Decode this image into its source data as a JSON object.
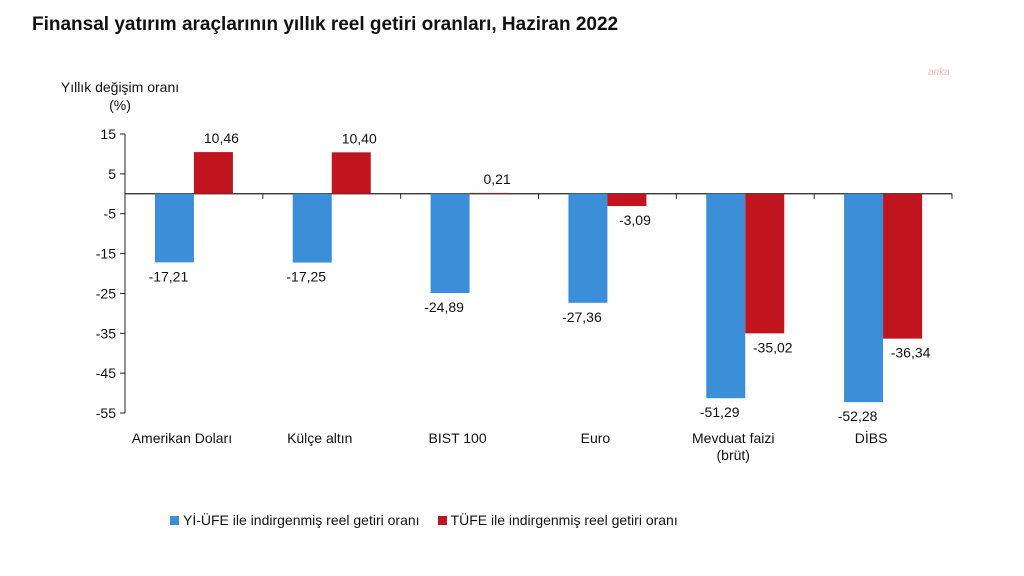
{
  "chart_data": {
    "type": "bar",
    "title": "Finansal yatırım araçlarının yıllık reel getiri oranları, Haziran 2022",
    "ylabel": "Yıllık değişim oranı (%)",
    "xlabel": "",
    "ylim": [
      -55,
      15
    ],
    "yticks": [
      15,
      5,
      -5,
      -15,
      -25,
      -35,
      -45,
      -55
    ],
    "categories": [
      [
        "Amerikan Doları"
      ],
      [
        "Külçe altın"
      ],
      [
        "BIST 100"
      ],
      [
        "Euro"
      ],
      [
        "Mevduat faizi",
        "(brüt)"
      ],
      [
        "DİBS"
      ]
    ],
    "series": [
      {
        "name": "Yİ-ÜFE ile indirgenmiş reel getiri oranı",
        "color": "#3b8fd9",
        "values": [
          -17.21,
          -17.25,
          -24.89,
          -27.36,
          -51.29,
          -52.28
        ],
        "labels": [
          "-17,21",
          "-17,25",
          "-24,89",
          "-27,36",
          "-51,29",
          "-52,28"
        ]
      },
      {
        "name": "TÜFE ile indirgenmiş reel getiri oranı",
        "color": "#c0141e",
        "values": [
          10.46,
          10.4,
          0.21,
          -3.09,
          -35.02,
          -36.34
        ],
        "labels": [
          "10,46",
          "10,40",
          "0,21",
          "-3,09",
          "-35,02",
          "-36,34"
        ]
      }
    ],
    "grid": false,
    "legend_position": "bottom"
  },
  "watermark": "anka"
}
